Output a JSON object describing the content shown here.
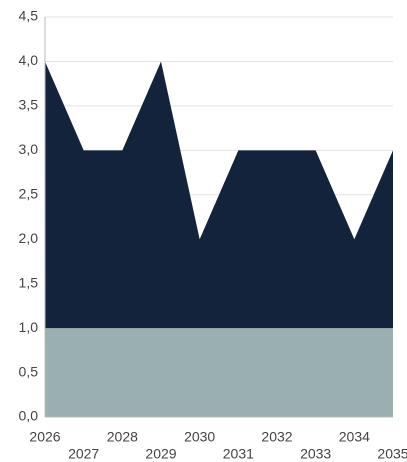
{
  "chart_data": {
    "type": "stacked_area",
    "categories": [
      "2026",
      "2027",
      "2028",
      "2029",
      "2030",
      "2031",
      "2032",
      "2033",
      "2034",
      "2035"
    ],
    "series": [
      {
        "color": "#9aafaf",
        "values": [
          1,
          1,
          1,
          1,
          1,
          1,
          1,
          1,
          1,
          1
        ]
      },
      {
        "color": "#14233c",
        "values": [
          3,
          2,
          2,
          3,
          1,
          2,
          2,
          2,
          1,
          2
        ]
      }
    ],
    "ylim": [
      0,
      4.5
    ],
    "yticks": [
      {
        "value": 0,
        "label": "0,0"
      },
      {
        "value": 0.5,
        "label": "0,5"
      },
      {
        "value": 1,
        "label": "1,0"
      },
      {
        "value": 1.5,
        "label": "1,5"
      },
      {
        "value": 2,
        "label": "2,0"
      },
      {
        "value": 2.5,
        "label": "2,5"
      },
      {
        "value": 3,
        "label": "3,0"
      },
      {
        "value": 3.5,
        "label": "3,5"
      },
      {
        "value": 4,
        "label": "4,0"
      },
      {
        "value": 4.5,
        "label": "4,5"
      }
    ],
    "grid": true
  }
}
